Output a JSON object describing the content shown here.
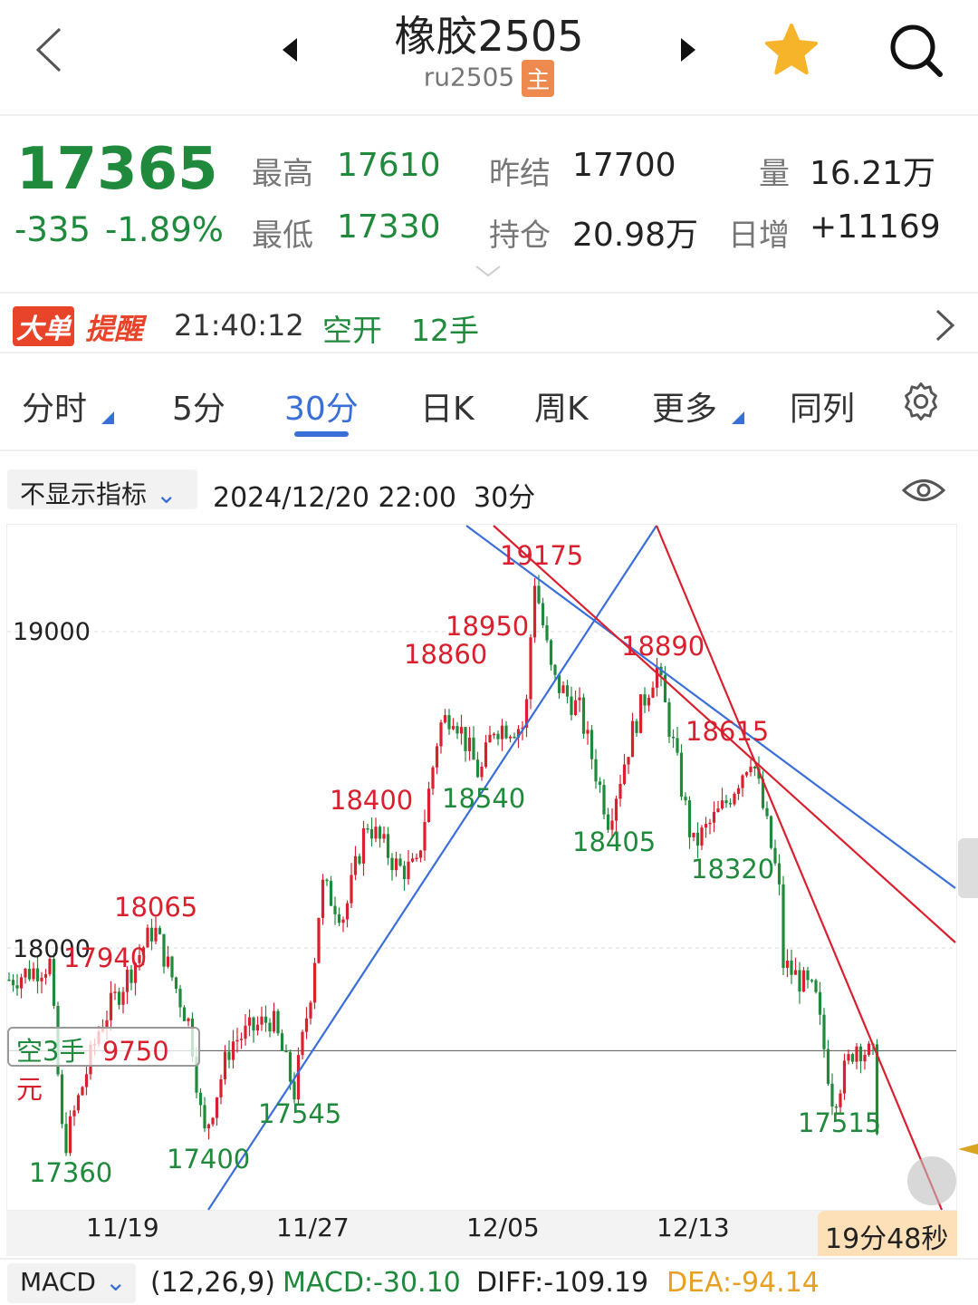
{
  "header": {
    "title": "橡胶2505",
    "code": "ru2505",
    "badge": "主",
    "icons": [
      "back-chevron-icon",
      "prev-triangle-icon",
      "next-triangle-icon",
      "star-icon",
      "search-icon"
    ]
  },
  "quote": {
    "last": "17365",
    "change": "-335",
    "change_pct": "-1.89%",
    "high_label": "最高",
    "high": "17610",
    "low_label": "最低",
    "low": "17330",
    "prev_settle_label": "昨结",
    "prev_settle": "17700",
    "oi_label": "持仓",
    "oi": "20.98万",
    "vol_label": "量",
    "vol": "16.21万",
    "daily_inc_label": "日增",
    "daily_inc": "+11169"
  },
  "alert": {
    "tag1": "大单",
    "tag2": "提醒",
    "time": "21:40:12",
    "action": "空开",
    "qty": "12手"
  },
  "tabs": [
    {
      "label": "分时"
    },
    {
      "label": "5分"
    },
    {
      "label": "30分",
      "active": true
    },
    {
      "label": "日K"
    },
    {
      "label": "周K"
    },
    {
      "label": "更多"
    },
    {
      "label": "同列"
    }
  ],
  "chart_bar": {
    "indicator": "不显示指标",
    "datetime": "2024/12/20 22:00",
    "period": "30分"
  },
  "position": {
    "side": "空3手",
    "pnl": "9750元"
  },
  "timer": "19分48秒",
  "macd": {
    "name": "MACD",
    "params": "(12,26,9)",
    "macd": "MACD:-30.10",
    "diff": "DIFF:-109.19",
    "dea": "DEA:-94.14"
  },
  "colors": {
    "up": "#d9202e",
    "down": "#1f8a3c",
    "accent": "#3a6fd8",
    "trendline_blue": "#3a6fd8",
    "trendline_red": "#d9202e",
    "dea": "#e8a020"
  },
  "chart_data": {
    "type": "candlestick",
    "y_ticks": [
      19000,
      18000
    ],
    "x_ticks": [
      "11/19",
      "11/27",
      "12/05",
      "12/13"
    ],
    "annotations": [
      {
        "text": "19175",
        "kind": "high"
      },
      {
        "text": "18950",
        "kind": "high"
      },
      {
        "text": "18860",
        "kind": "high"
      },
      {
        "text": "18890",
        "kind": "high"
      },
      {
        "text": "18615",
        "kind": "high"
      },
      {
        "text": "18400",
        "kind": "high"
      },
      {
        "text": "18065",
        "kind": "high"
      },
      {
        "text": "17940",
        "kind": "high"
      },
      {
        "text": "18540",
        "kind": "low"
      },
      {
        "text": "18405",
        "kind": "low"
      },
      {
        "text": "18320",
        "kind": "low"
      },
      {
        "text": "17545",
        "kind": "low"
      },
      {
        "text": "17400",
        "kind": "low"
      },
      {
        "text": "17360",
        "kind": "low"
      },
      {
        "text": "17515",
        "kind": "low"
      }
    ],
    "price_path": [
      17900,
      17950,
      17360,
      17750,
      18065,
      17750,
      17400,
      17700,
      17780,
      17545,
      17900,
      18200,
      18100,
      18400,
      18250,
      18250,
      18700,
      18750,
      18540,
      18700,
      18700,
      19175,
      18850,
      18750,
      18405,
      18700,
      18890,
      18620,
      18320,
      18450,
      18615,
      18200,
      17950,
      17850,
      17515,
      17700,
      17650,
      17365
    ],
    "position_line": 17675
  }
}
